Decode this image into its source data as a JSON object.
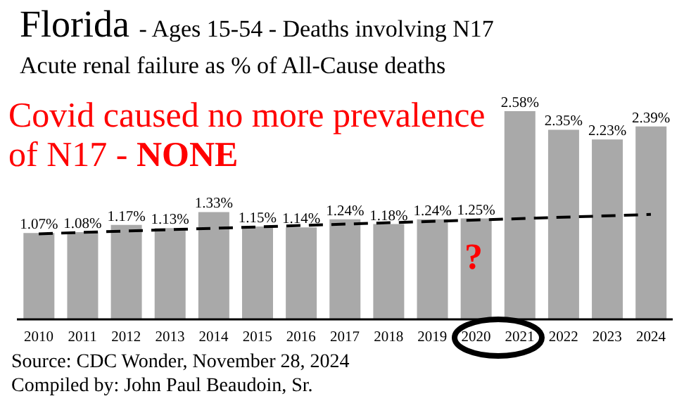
{
  "chart_data": {
    "type": "bar",
    "title": "Florida - Ages 15-54 - Deaths involving N17",
    "subtitle": "Acute renal failure as % of All-Cause deaths",
    "categories": [
      "2010",
      "2011",
      "2012",
      "2013",
      "2014",
      "2015",
      "2016",
      "2017",
      "2018",
      "2019",
      "2020",
      "2021",
      "2022",
      "2023",
      "2024"
    ],
    "series": [
      {
        "color": "#a9a9a9",
        "values": [
          1.07,
          1.08,
          1.17,
          1.13,
          1.33,
          1.15,
          1.14,
          1.24,
          1.18,
          1.24,
          1.25,
          2.58,
          2.35,
          2.23,
          2.39
        ],
        "value_labels": [
          "1.07%",
          "1.08%",
          "1.17%",
          "1.13%",
          "1.33%",
          "1.15%",
          "1.14%",
          "1.24%",
          "1.18%",
          "1.24%",
          "1.25%",
          "2.58%",
          "2.35%",
          "2.23%",
          "2.39%"
        ]
      },
      {
        "type": "line",
        "color": "#000000",
        "line_style": "dashed",
        "values": [
          1.06,
          null,
          null,
          null,
          null,
          null,
          null,
          null,
          null,
          null,
          null,
          null,
          null,
          null,
          1.3
        ]
      }
    ],
    "tick_labels": "x",
    "grid": false,
    "legend": false,
    "annotations": [
      "Covid caused no more prevalence of N17 - NONE",
      "?",
      "Source:  CDC Wonder, November 28, 2024",
      "Compiled by:  John Paul Beaudoin, Sr."
    ]
  }
}
